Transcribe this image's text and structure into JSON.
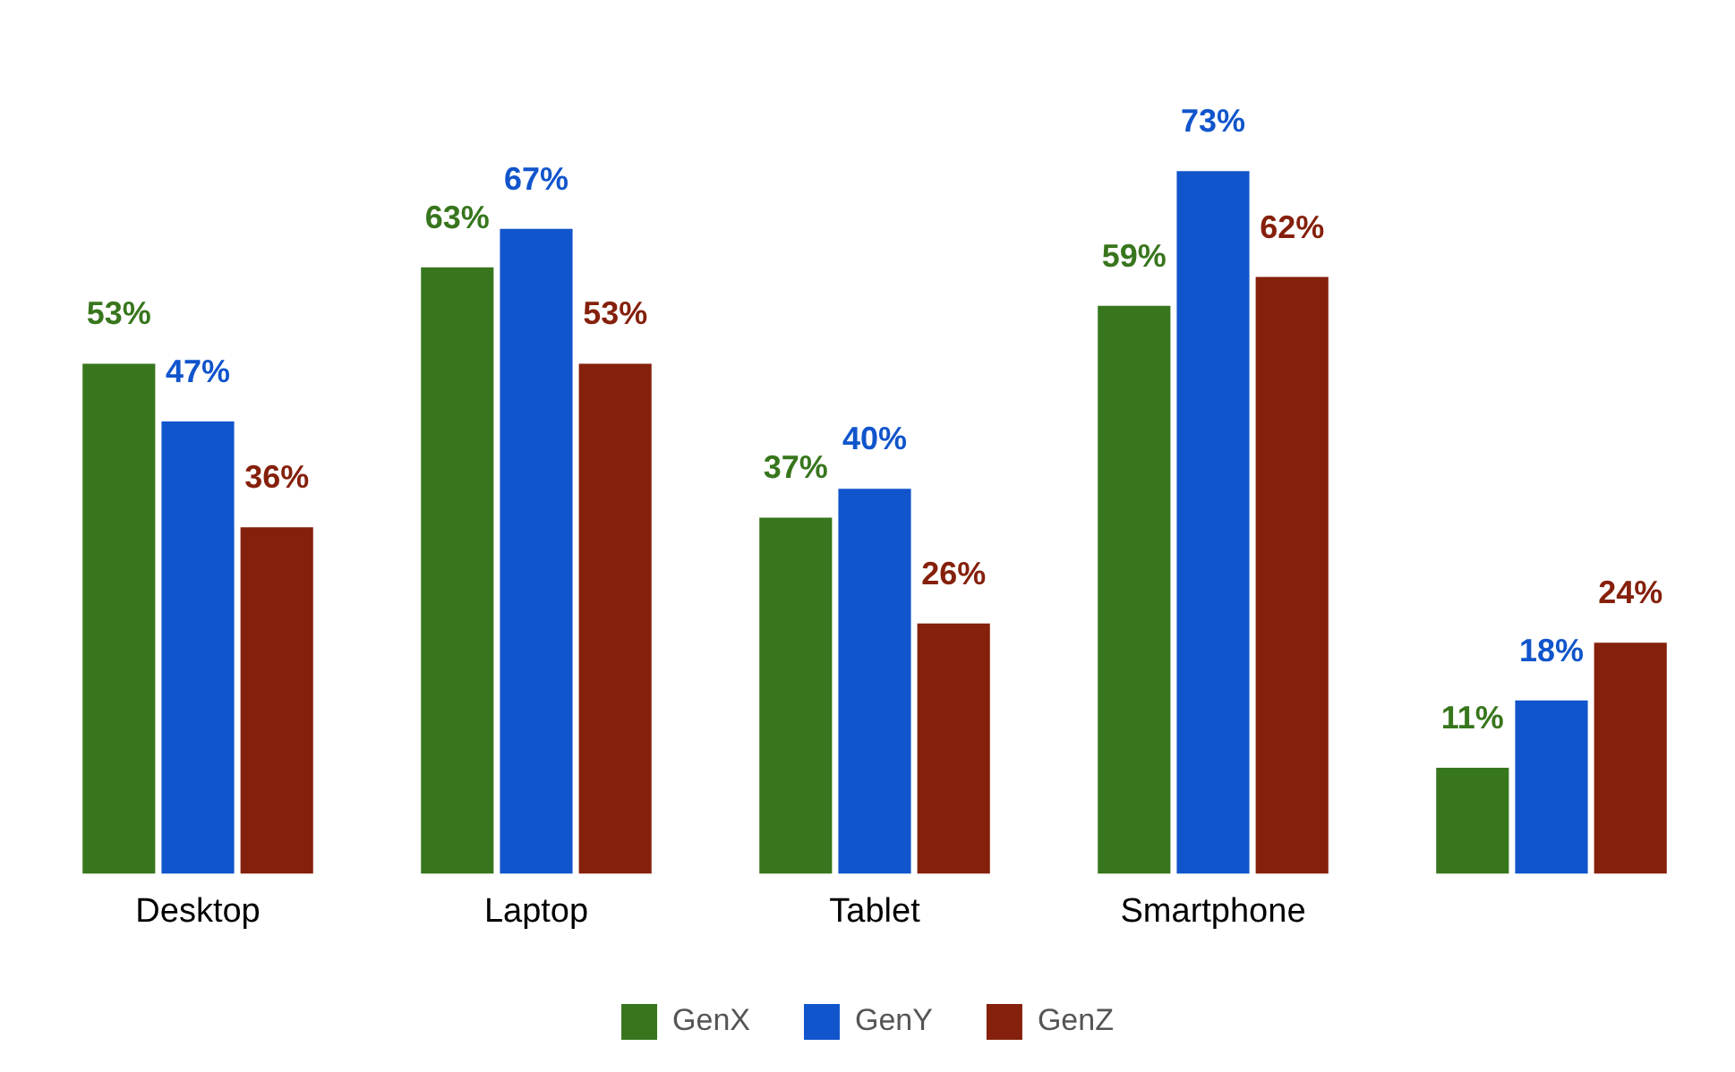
{
  "chart_data": {
    "type": "bar",
    "categories": [
      "Desktop",
      "Laptop",
      "Tablet",
      "Smartphone",
      null
    ],
    "series": [
      {
        "name": "GenX",
        "color": "#38761d",
        "values": [
          53,
          63,
          37,
          59,
          11
        ],
        "value_labels": [
          "53%",
          "63%",
          "37%",
          "59%",
          "11%"
        ]
      },
      {
        "name": "GenY",
        "color": "#1155cc",
        "values": [
          47,
          67,
          40,
          73,
          18
        ],
        "value_labels": [
          "47%",
          "67%",
          "40%",
          "73%",
          "18%"
        ]
      },
      {
        "name": "GenZ",
        "color": "#85200c",
        "values": [
          36,
          53,
          26,
          62,
          24
        ],
        "value_labels": [
          "36%",
          "53%",
          "26%",
          "62%",
          "24%"
        ]
      }
    ],
    "legend": "bottom",
    "grid": false,
    "tick_labels": "x"
  }
}
